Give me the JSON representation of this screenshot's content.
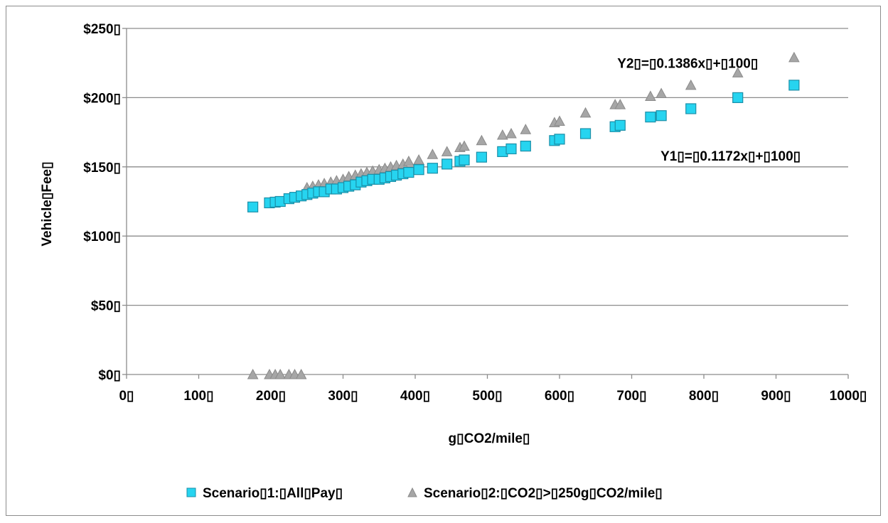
{
  "chart_data": {
    "type": "scatter",
    "xlabel": "g▯CO2/mile▯",
    "ylabel": "Vehicle▯Fee▯",
    "xlim": [
      0,
      1000
    ],
    "ylim": [
      0,
      250
    ],
    "x_ticks": [
      "0▯",
      "100▯",
      "200▯",
      "300▯",
      "400▯",
      "500▯",
      "600▯",
      "700▯",
      "800▯",
      "900▯",
      "1000▯"
    ],
    "x_tick_values": [
      0,
      100,
      200,
      300,
      400,
      500,
      600,
      700,
      800,
      900,
      1000
    ],
    "y_ticks": [
      "$0▯",
      "$50▯",
      "$100▯",
      "$150▯",
      "$200▯",
      "$250▯"
    ],
    "y_tick_values": [
      0,
      50,
      100,
      150,
      200,
      250
    ],
    "grid": "horizontal",
    "legend_position": "bottom",
    "annotations": [
      {
        "text": "Y2▯=▯0.1386x▯+▯100▯",
        "x": 680,
        "y": 225
      },
      {
        "text": "Y1▯=▯0.1172x▯+▯100▯",
        "x": 740,
        "y": 158
      }
    ],
    "series": [
      {
        "name": "Scenario▯1:▯All▯Pay▯",
        "marker": "square",
        "color": "#26d4f0",
        "stroke": "#1b8fa8",
        "x": [
          175,
          198,
          206,
          213,
          225,
          233,
          242,
          250,
          258,
          266,
          274,
          283,
          291,
          300,
          308,
          317,
          325,
          333,
          341,
          350,
          358,
          366,
          374,
          383,
          391,
          405,
          424,
          444,
          462,
          468,
          492,
          521,
          533,
          553,
          593,
          600,
          636,
          677,
          684,
          726,
          741,
          782,
          847,
          925
        ],
        "y": [
          121,
          124,
          124.5,
          125,
          127,
          128,
          129,
          130,
          131,
          132,
          132,
          134,
          134,
          135,
          136,
          137,
          139,
          140,
          141,
          141,
          142,
          143,
          144,
          145,
          146,
          148,
          149,
          152,
          154,
          155,
          157,
          161,
          163,
          165,
          169,
          170,
          174,
          179,
          180,
          186,
          187,
          192,
          200,
          209
        ]
      },
      {
        "name": "Scenario▯2:▯CO2▯>▯250g▯CO2/mile▯",
        "marker": "triangle",
        "color": "#a6a6a6",
        "stroke": "#8a8a8a",
        "x": [
          175,
          198,
          206,
          213,
          225,
          233,
          242,
          250,
          258,
          266,
          274,
          283,
          291,
          300,
          308,
          317,
          325,
          333,
          341,
          350,
          358,
          366,
          374,
          383,
          391,
          405,
          424,
          444,
          462,
          468,
          492,
          521,
          533,
          553,
          593,
          600,
          636,
          677,
          684,
          726,
          741,
          782,
          847,
          925
        ],
        "y": [
          0,
          0,
          0,
          0,
          0,
          0,
          0,
          135,
          136,
          137,
          138,
          139,
          140,
          141,
          143,
          144,
          145,
          146,
          147,
          148,
          149,
          150,
          151,
          152,
          154,
          155,
          159,
          161,
          164,
          165,
          169,
          173,
          174,
          177,
          182,
          183,
          189,
          195,
          195,
          201,
          203,
          209,
          218,
          229
        ]
      }
    ]
  }
}
